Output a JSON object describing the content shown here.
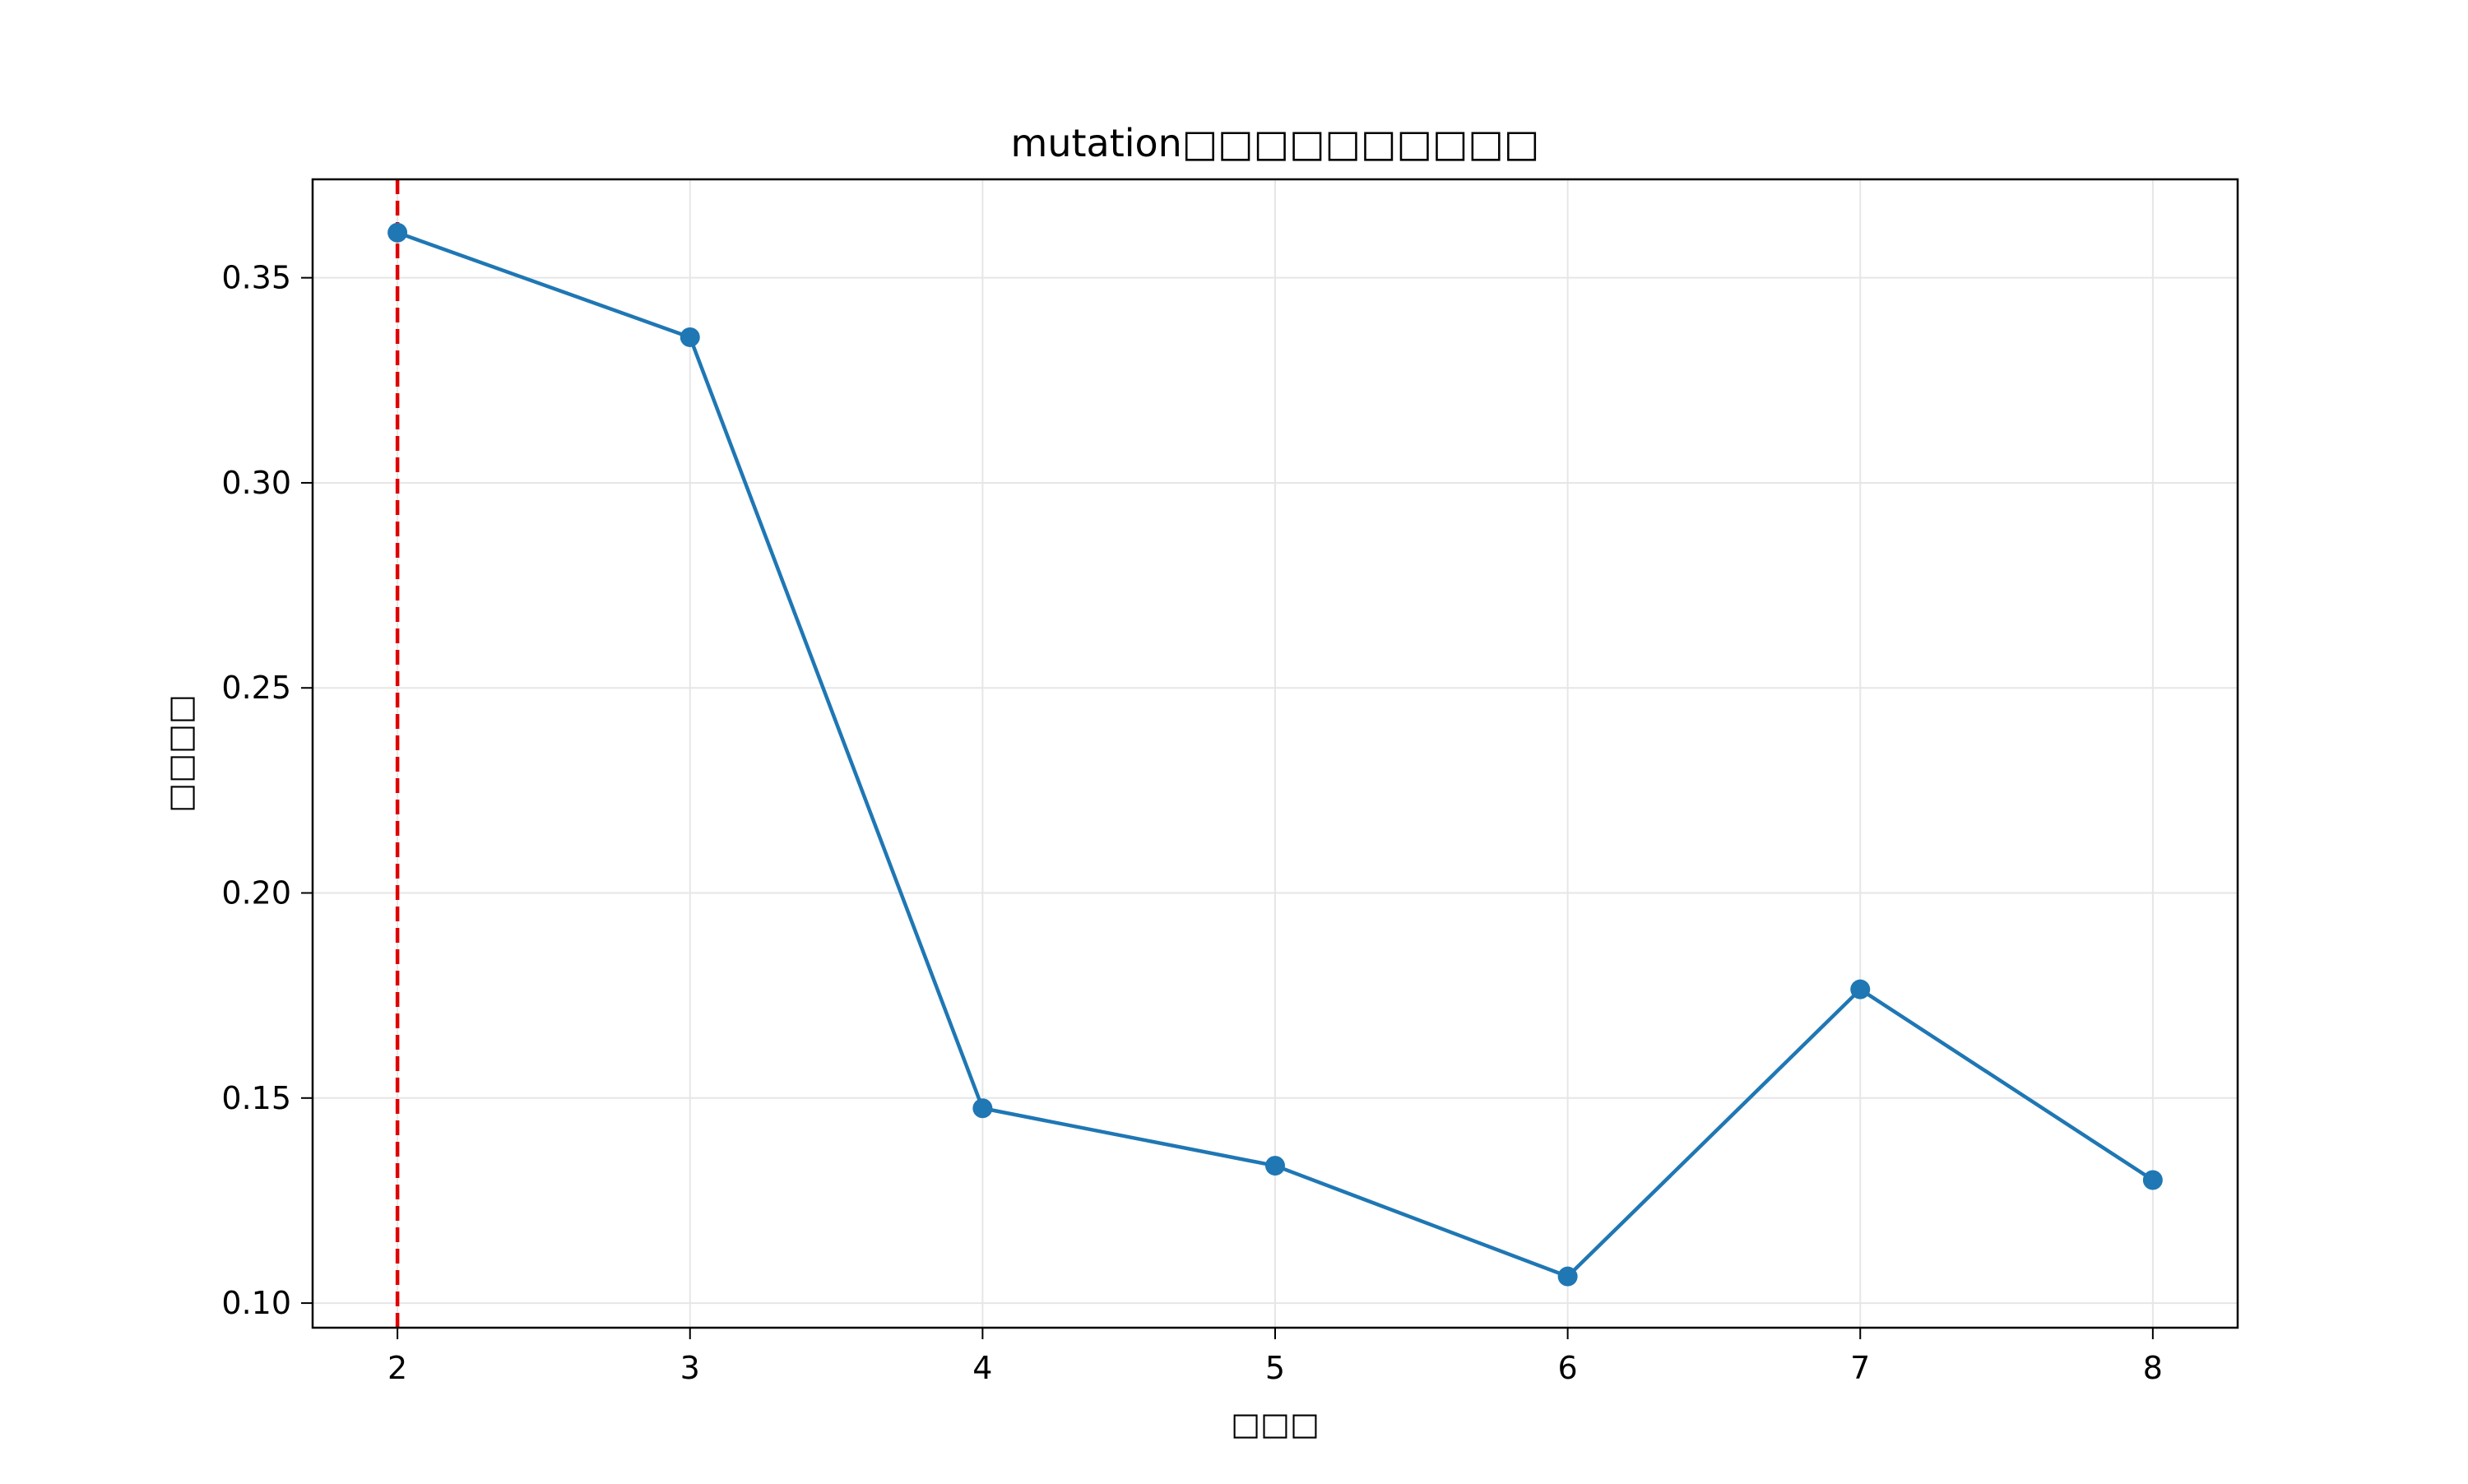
{
  "chart_data": {
    "type": "line",
    "title": "mutation□□□□□□□□□□",
    "xlabel": "□□□",
    "ylabel": "□□□□",
    "x": [
      2,
      3,
      4,
      5,
      6,
      7,
      8
    ],
    "series": [
      {
        "values": [
          0.361,
          0.3355,
          0.1475,
          0.1335,
          0.1065,
          0.1765,
          0.13
        ]
      }
    ],
    "xlim": [
      1.71,
      8.29
    ],
    "ylim": [
      0.094,
      0.374
    ],
    "xticks": [
      2,
      3,
      4,
      5,
      6,
      7,
      8
    ],
    "yticks": [
      0.1,
      0.15,
      0.2,
      0.25,
      0.3,
      0.35
    ],
    "ytick_labels": [
      "0.10",
      "0.15",
      "0.20",
      "0.25",
      "0.30",
      "0.35"
    ],
    "reference_line": {
      "x": 2,
      "style": "dashed",
      "color": "#e00000"
    },
    "grid": true,
    "legend": "none",
    "colors": {
      "series": "#1f77b4",
      "reference": "#e00000",
      "grid": "#e6e6e6",
      "axes": "#000000"
    }
  }
}
